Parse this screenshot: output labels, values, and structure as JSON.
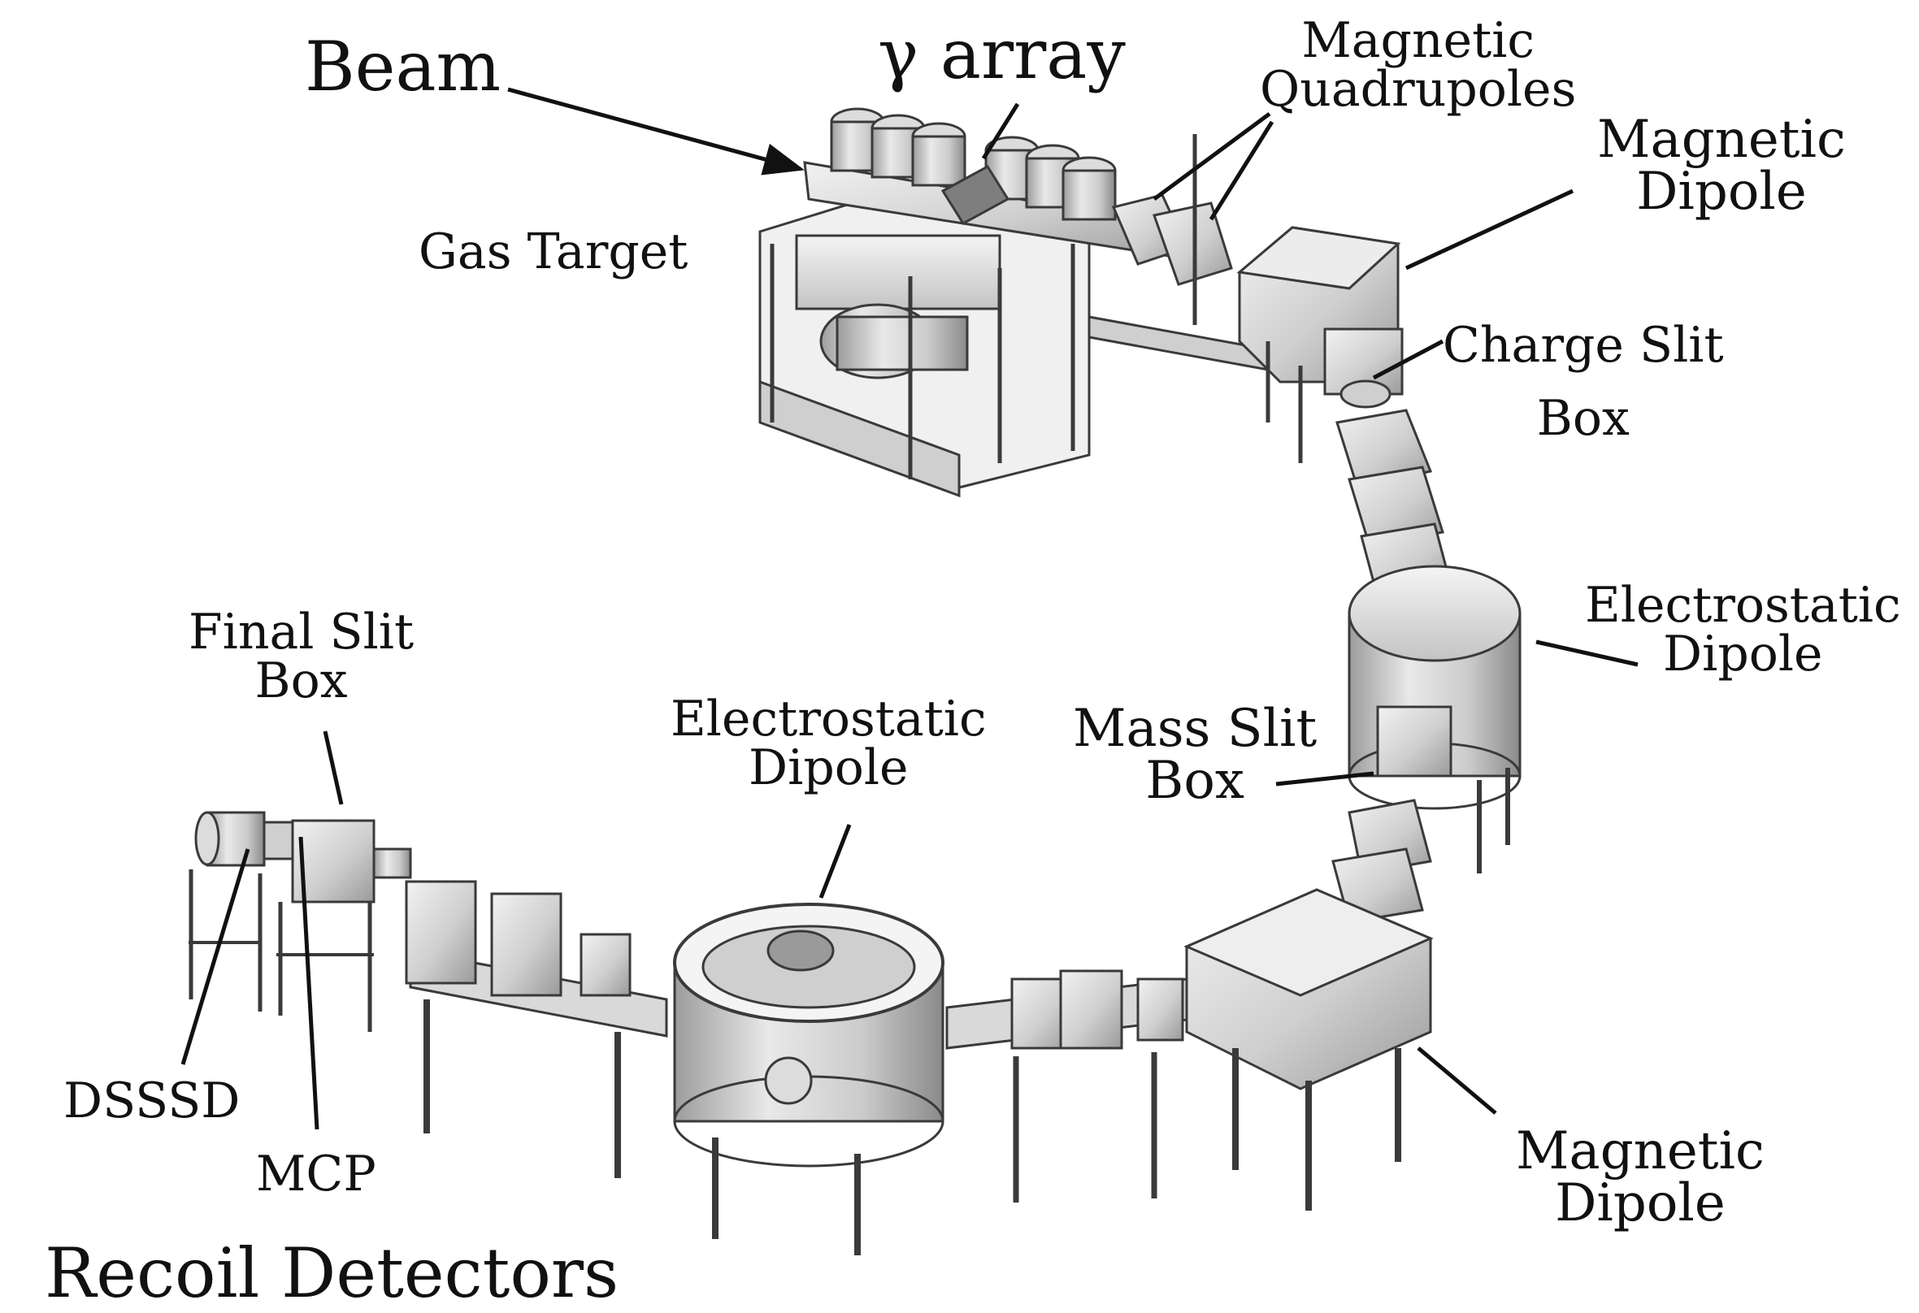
{
  "labels": {
    "beam": "Beam",
    "gamma_array": "γ array",
    "gas_target": "Gas Target",
    "magnetic_quadrupoles": [
      "Magnetic",
      "Quadrupoles"
    ],
    "magnetic_dipole_top": [
      "Magnetic",
      "Dipole"
    ],
    "charge_slit_box": [
      "Charge Slit",
      "Box"
    ],
    "electrostatic_dipole_right": [
      "Electrostatic",
      "Dipole"
    ],
    "mass_slit_box": [
      "Mass Slit",
      "Box"
    ],
    "electrostatic_dipole_center": [
      "Electrostatic",
      "Dipole"
    ],
    "final_slit_box": [
      "Final Slit",
      "Box"
    ],
    "magnetic_dipole_bottom": [
      "Magnetic",
      "Dipole"
    ],
    "dsssd": "DSSSD",
    "mcp": "MCP",
    "recoil_detectors": "Recoil Detectors"
  },
  "colors": {
    "text": "#111111",
    "line": "#111111",
    "metal_light": "#e6e6e6",
    "metal_mid": "#bdbdbd",
    "metal_dark": "#8c8c8c",
    "outline": "#3a3a3a"
  },
  "icons": {
    "beam_arrow": "arrow-right-icon"
  }
}
